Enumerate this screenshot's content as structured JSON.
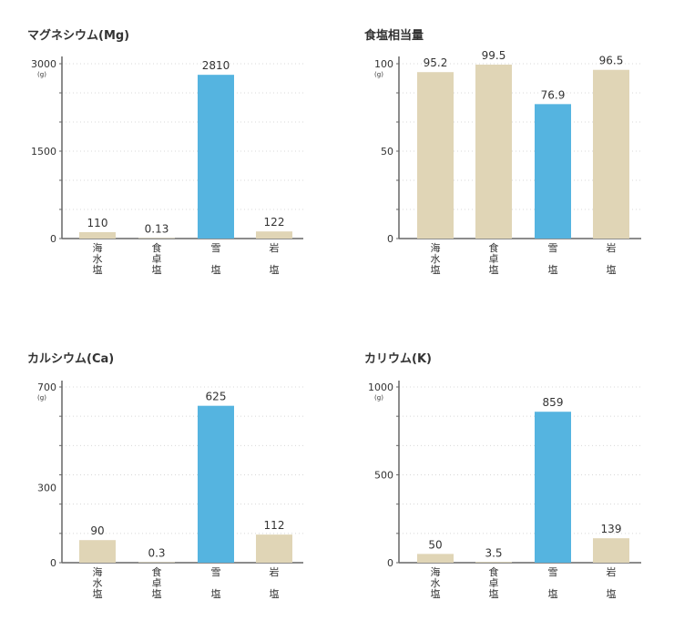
{
  "colors": {
    "default_bar": "#e0d5b6",
    "highlight_bar": "#55b4e0",
    "axis": "#666666",
    "grid": "#d8d8d8",
    "text": "#333333"
  },
  "chart_data": [
    {
      "type": "bar",
      "title": "マグネシウム(Mg)",
      "unit": "(g)",
      "categories": [
        "海水塩",
        "食卓塩",
        "雪塩",
        "岩塩"
      ],
      "values": [
        110,
        0.13,
        2810,
        122
      ],
      "value_labels": [
        "110",
        "0.13",
        "2810",
        "122"
      ],
      "highlight": [
        false,
        false,
        true,
        false
      ],
      "yticks": [
        0,
        1500,
        3000
      ],
      "ylim": [
        0,
        3000
      ],
      "grid": true
    },
    {
      "type": "bar",
      "title": "食塩相当量",
      "unit": "(g)",
      "categories": [
        "海水塩",
        "食卓塩",
        "雪塩",
        "岩塩"
      ],
      "values": [
        95.2,
        99.5,
        76.9,
        96.5
      ],
      "value_labels": [
        "95.2",
        "99.5",
        "76.9",
        "96.5"
      ],
      "highlight": [
        false,
        false,
        true,
        false
      ],
      "yticks": [
        0,
        50,
        100
      ],
      "ylim": [
        0,
        100
      ],
      "grid": true
    },
    {
      "type": "bar",
      "title": "カルシウム(Ca)",
      "unit": "(g)",
      "categories": [
        "海水塩",
        "食卓塩",
        "雪塩",
        "岩塩"
      ],
      "values": [
        90,
        0.3,
        625,
        112
      ],
      "value_labels": [
        "90",
        "0.3",
        "625",
        "112"
      ],
      "highlight": [
        false,
        false,
        true,
        false
      ],
      "yticks": [
        0,
        300,
        700
      ],
      "ylim": [
        0,
        700
      ],
      "grid": true
    },
    {
      "type": "bar",
      "title": "カリウム(K)",
      "unit": "(g)",
      "categories": [
        "海水塩",
        "食卓塩",
        "雪塩",
        "岩塩"
      ],
      "values": [
        50,
        3.5,
        859,
        139
      ],
      "value_labels": [
        "50",
        "3.5",
        "859",
        "139"
      ],
      "highlight": [
        false,
        false,
        true,
        false
      ],
      "yticks": [
        0,
        500,
        1000
      ],
      "ylim": [
        0,
        1000
      ],
      "grid": true
    }
  ]
}
